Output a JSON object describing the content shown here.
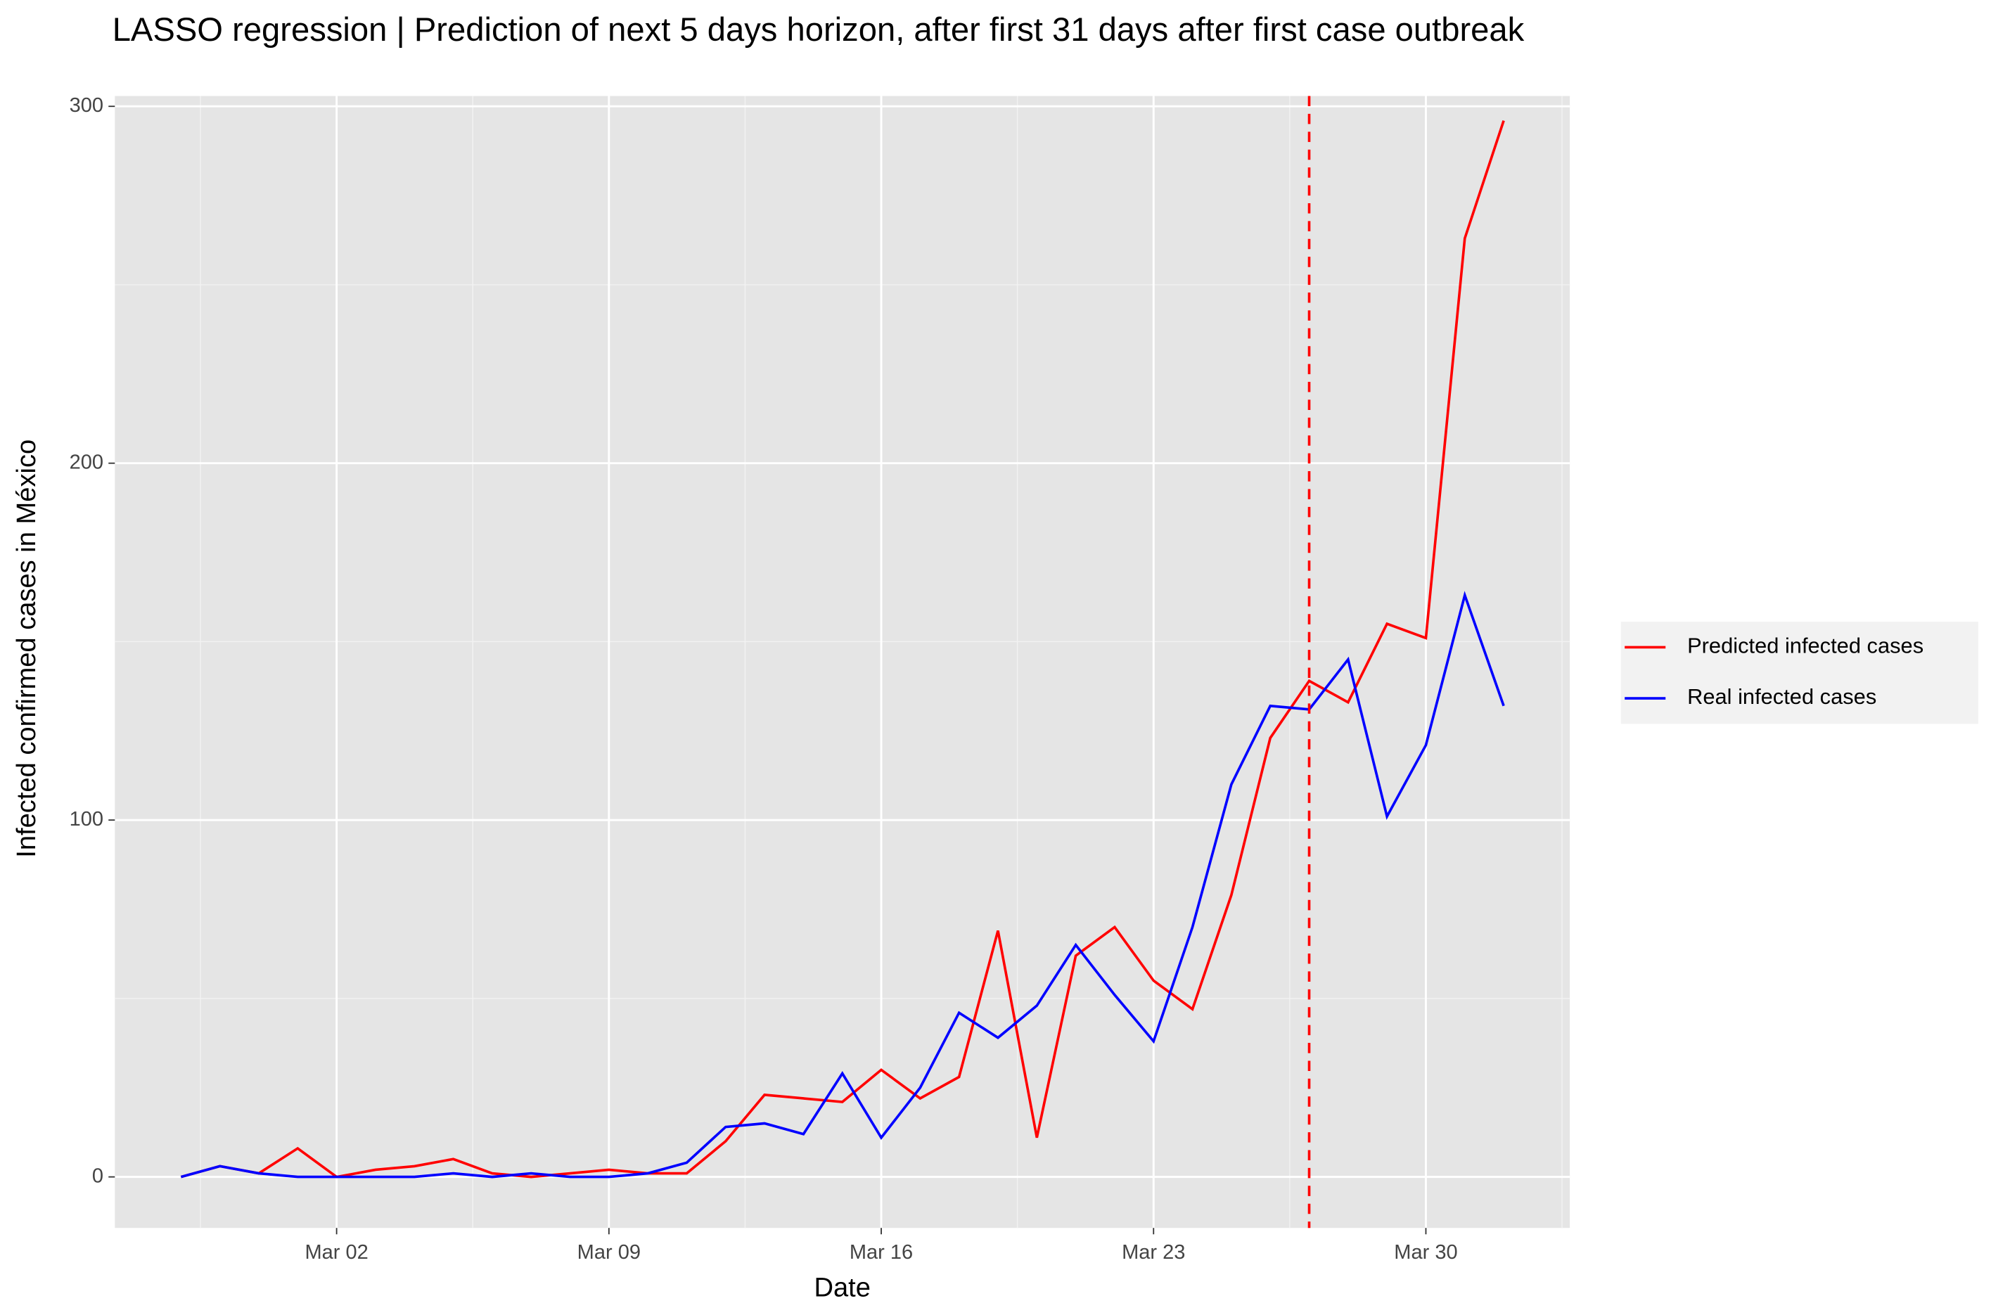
{
  "chart_data": {
    "type": "line",
    "title": "LASSO regression | Prediction of next 5 days horizon, after first 31 days after first case outbreak",
    "x_label": "Date",
    "y_label": "Infected confirmed cases in México",
    "x": [
      "Feb 27",
      "Feb 28",
      "Feb 29",
      "Mar 01",
      "Mar 02",
      "Mar 03",
      "Mar 04",
      "Mar 05",
      "Mar 06",
      "Mar 07",
      "Mar 08",
      "Mar 09",
      "Mar 10",
      "Mar 11",
      "Mar 12",
      "Mar 13",
      "Mar 14",
      "Mar 15",
      "Mar 16",
      "Mar 17",
      "Mar 18",
      "Mar 19",
      "Mar 20",
      "Mar 21",
      "Mar 22",
      "Mar 23",
      "Mar 24",
      "Mar 25",
      "Mar 26",
      "Mar 27",
      "Mar 28",
      "Mar 29",
      "Mar 30",
      "Mar 31",
      "Apr 01"
    ],
    "xticks": [
      "Mar 02",
      "Mar 09",
      "Mar 16",
      "Mar 23",
      "Mar 30"
    ],
    "series": [
      {
        "name": "Predicted infected cases",
        "color": "#ff0000",
        "values": [
          0,
          3,
          1,
          8,
          0,
          2,
          3,
          5,
          1,
          0,
          1,
          2,
          1,
          1,
          10,
          23,
          22,
          21,
          30,
          22,
          28,
          69,
          11,
          62,
          70,
          55,
          47,
          79,
          123,
          139,
          133,
          155,
          151,
          263,
          296
        ]
      },
      {
        "name": "Real infected cases",
        "color": "#0000ff",
        "values": [
          0,
          3,
          1,
          0,
          0,
          0,
          0,
          1,
          0,
          1,
          0,
          0,
          1,
          4,
          14,
          15,
          12,
          29,
          11,
          25,
          46,
          39,
          48,
          65,
          51,
          38,
          70,
          110,
          132,
          131,
          145,
          101,
          121,
          163,
          132
        ]
      }
    ],
    "vline": {
      "x": "Mar 27",
      "color": "#ff0000",
      "dashed": true
    },
    "ylim": [
      -14.3,
      302.9
    ],
    "yticks": [
      0,
      100,
      200,
      300
    ],
    "grid": true,
    "legend": "right"
  }
}
